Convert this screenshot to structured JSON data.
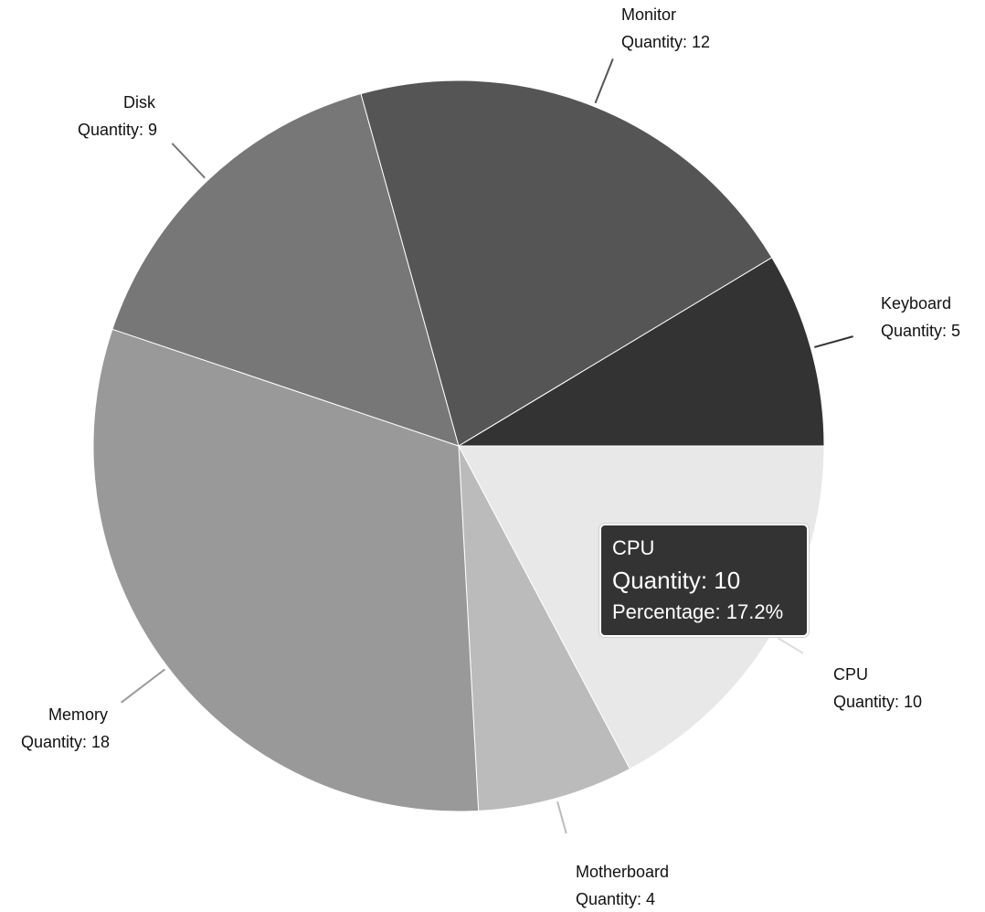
{
  "chart_data": {
    "type": "pie",
    "slices": [
      {
        "label": "CPU",
        "value": 10,
        "color": "#e8e8e8",
        "quantity_label": "Quantity: 10"
      },
      {
        "label": "Motherboard",
        "value": 4,
        "color": "#bbbbbb",
        "quantity_label": "Quantity: 4"
      },
      {
        "label": "Memory",
        "value": 18,
        "color": "#999999",
        "quantity_label": "Quantity: 18"
      },
      {
        "label": "Disk",
        "value": 9,
        "color": "#777777",
        "quantity_label": "Quantity: 9"
      },
      {
        "label": "Monitor",
        "value": 12,
        "color": "#555555",
        "quantity_label": "Quantity: 12"
      },
      {
        "label": "Keyboard",
        "value": 5,
        "color": "#333333",
        "quantity_label": "Quantity: 5"
      }
    ]
  },
  "tooltip": {
    "title": "CPU",
    "quantity": "Quantity: 10",
    "percentage": "Percentage: 17.2%"
  }
}
